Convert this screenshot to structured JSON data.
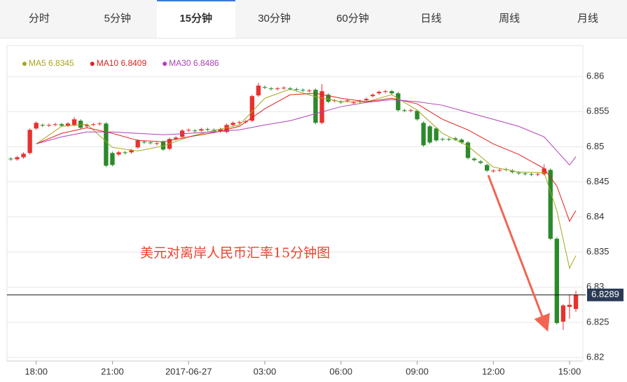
{
  "tabs": [
    "分时",
    "5分钟",
    "15分钟",
    "30分钟",
    "60分钟",
    "日线",
    "周线",
    "月线"
  ],
  "active_tab": 2,
  "chart_data": {
    "type": "candlestick",
    "annotation": "美元对离岸人民币汇率15分钟图",
    "last_price": 6.8289,
    "up_color": "#e8312f",
    "down_color": "#2b8a2b",
    "ylim": [
      6.8195,
      6.8644
    ],
    "yticks": [
      6.86,
      6.855,
      6.85,
      6.845,
      6.84,
      6.835,
      6.83,
      6.825,
      6.82
    ],
    "xlim": [
      -0.6,
      90.1
    ],
    "xticks": [
      {
        "value": 4,
        "label": "18:00"
      },
      {
        "value": 16,
        "label": "21:00"
      },
      {
        "value": 28,
        "label": "2017-06-27"
      },
      {
        "value": 40,
        "label": "03:00"
      },
      {
        "value": 52,
        "label": "06:00"
      },
      {
        "value": 64,
        "label": "09:00"
      },
      {
        "value": 76,
        "label": "12:00"
      },
      {
        "value": 88,
        "label": "15:00"
      }
    ],
    "open": [
      6.8483,
      6.8482,
      6.8485,
      6.8491,
      6.8526,
      6.8531,
      6.853,
      6.8531,
      6.8532,
      6.853,
      6.8531,
      6.8537,
      6.8529,
      6.8531,
      6.8532,
      6.8533,
      6.8491,
      6.8489,
      6.8492,
      6.8492,
      6.8499,
      6.8507,
      6.8506,
      6.8504,
      6.8507,
      6.8497,
      6.8511,
      6.8514,
      6.8523,
      6.8523,
      6.8523,
      6.8525,
      6.8524,
      6.8522,
      6.8521,
      6.8531,
      6.8534,
      6.8535,
      6.8537,
      6.8573,
      6.8585,
      6.8583,
      6.8582,
      6.8583,
      6.8583,
      6.8582,
      6.8581,
      6.8579,
      6.8581,
      6.8534,
      6.8574,
      6.8565,
      6.8564,
      6.8565,
      6.8562,
      6.8564,
      6.8566,
      6.8572,
      6.8576,
      6.8578,
      6.8579,
      6.8576,
      6.8552,
      6.8551,
      6.8551,
      6.8534,
      6.8529,
      6.8526,
      6.8511,
      6.8511,
      6.8512,
      6.851,
      6.8506,
      6.8483,
      6.8479,
      6.8474,
      6.8465,
      6.8466,
      6.8468,
      6.8466,
      6.8463,
      6.8462,
      6.8461,
      6.846,
      6.8461,
      6.8467,
      6.8369,
      6.8251,
      6.8272,
      6.8269
    ],
    "high": [
      6.8485,
      6.8487,
      6.8492,
      6.8526,
      6.8536,
      6.8533,
      6.8533,
      6.8534,
      6.8534,
      6.8535,
      6.8542,
      6.8539,
      6.8533,
      6.8534,
      6.8535,
      6.8535,
      6.8493,
      6.8494,
      6.8494,
      6.8497,
      6.8511,
      6.8509,
      6.8508,
      6.8507,
      6.8509,
      6.8513,
      6.8515,
      6.8525,
      6.8526,
      6.8525,
      6.8527,
      6.8527,
      6.8526,
      6.8527,
      6.8533,
      6.8536,
      6.8537,
      6.8538,
      6.8574,
      6.8591,
      6.8587,
      6.8585,
      6.8585,
      6.8586,
      6.8585,
      6.8584,
      6.8583,
      6.8582,
      6.8583,
      6.8589,
      6.8576,
      6.8568,
      6.8566,
      6.8568,
      6.8565,
      6.8567,
      6.857,
      6.8576,
      6.858,
      6.8581,
      6.8581,
      6.8578,
      6.8554,
      6.8554,
      6.8553,
      6.8536,
      6.8531,
      6.8528,
      6.8513,
      6.8513,
      6.8514,
      6.8512,
      6.8508,
      6.8485,
      6.8481,
      6.8476,
      6.8468,
      6.8469,
      6.847,
      6.8468,
      6.8465,
      6.8464,
      6.8463,
      6.8463,
      6.8475,
      6.8469,
      6.8371,
      6.8276,
      6.829,
      6.8295
    ],
    "low": [
      6.848,
      6.848,
      6.8483,
      6.8489,
      6.8524,
      6.8528,
      6.8528,
      6.8529,
      6.8528,
      6.8528,
      6.8529,
      6.8525,
      6.8527,
      6.8529,
      6.853,
      6.8471,
      6.8472,
      6.8487,
      6.8489,
      6.849,
      6.8497,
      6.8504,
      6.8503,
      6.8502,
      6.8494,
      6.8495,
      6.8509,
      6.8512,
      6.8521,
      6.852,
      6.8521,
      6.8522,
      6.852,
      6.852,
      6.8519,
      6.8529,
      6.8532,
      6.8533,
      6.8535,
      6.8571,
      6.8582,
      6.858,
      6.858,
      6.8581,
      6.858,
      6.8579,
      6.8578,
      6.8577,
      6.8532,
      6.8532,
      6.8562,
      6.8563,
      6.8561,
      6.8563,
      6.856,
      6.8562,
      6.8564,
      6.857,
      6.8574,
      6.8576,
      6.8574,
      6.855,
      6.8549,
      6.8549,
      6.8537,
      6.85,
      6.8504,
      6.8507,
      6.8508,
      6.8508,
      6.8508,
      6.8504,
      6.8482,
      6.8479,
      6.8475,
      6.8464,
      6.8463,
      6.8464,
      6.8465,
      6.8462,
      6.846,
      6.8459,
      6.8458,
      6.8458,
      6.8459,
      6.8367,
      6.8247,
      6.8239,
      6.8255,
      6.8265
    ],
    "close": [
      6.8482,
      6.8485,
      6.849,
      6.8524,
      6.8534,
      6.853,
      6.8531,
      6.8532,
      6.853,
      6.8533,
      6.8539,
      6.8527,
      6.8531,
      6.8532,
      6.8533,
      6.8473,
      6.8474,
      6.8492,
      6.8491,
      6.8495,
      6.8509,
      6.8506,
      6.8505,
      6.8505,
      6.8496,
      6.8511,
      6.8513,
      6.8523,
      6.8524,
      6.8522,
      6.8525,
      6.8524,
      6.8522,
      6.8525,
      6.8531,
      6.8534,
      6.8535,
      6.8536,
      6.8572,
      6.8587,
      6.8584,
      6.8582,
      6.8583,
      6.8584,
      6.8582,
      6.8581,
      6.858,
      6.858,
      6.8534,
      6.8579,
      6.8564,
      6.8566,
      6.8563,
      6.8566,
      6.8563,
      6.8565,
      6.8568,
      6.8574,
      6.8578,
      6.8579,
      6.8576,
      6.8552,
      6.8551,
      6.8552,
      6.8539,
      6.8502,
      6.8506,
      6.8509,
      6.851,
      6.851,
      6.851,
      6.8506,
      6.8484,
      6.8481,
      6.8477,
      6.8466,
      6.8466,
      6.8467,
      6.8467,
      6.8464,
      6.8462,
      6.8461,
      6.846,
      6.8461,
      6.8469,
      6.8369,
      6.8249,
      6.8274,
      6.8275,
      6.8289
    ],
    "series": [
      {
        "name": "MA5",
        "color": "#a6a61c",
        "x": [
          4,
          8,
          12,
          16,
          20,
          24,
          28,
          32,
          36,
          40,
          44,
          48,
          52,
          56,
          60,
          64,
          68,
          72,
          76,
          80,
          84,
          86,
          88,
          89
        ],
        "values": [
          6.8504,
          6.8529,
          6.8532,
          6.8499,
          6.8494,
          6.8501,
          6.8514,
          6.8523,
          6.8531,
          6.8569,
          6.8582,
          6.8571,
          6.8564,
          6.8564,
          6.8574,
          6.8552,
          6.8519,
          6.8501,
          6.8471,
          6.8464,
          6.8463,
          6.8409,
          6.8327,
          6.8345
        ]
      },
      {
        "name": "MA10",
        "color": "#e0201c",
        "x": [
          4,
          8,
          12,
          16,
          20,
          24,
          28,
          32,
          36,
          40,
          44,
          48,
          52,
          56,
          60,
          64,
          68,
          72,
          76,
          80,
          84,
          86,
          88,
          89
        ],
        "values": [
          6.8504,
          6.8519,
          6.8527,
          6.8519,
          6.8509,
          6.8507,
          6.8514,
          6.852,
          6.8529,
          6.8554,
          6.8574,
          6.8576,
          6.8569,
          6.8564,
          6.8569,
          6.8561,
          6.8539,
          6.8524,
          6.8504,
          6.8489,
          6.8469,
          6.8444,
          6.8394,
          6.8409
        ]
      },
      {
        "name": "MA30",
        "color": "#b040b8",
        "x": [
          4,
          8,
          12,
          16,
          20,
          24,
          28,
          32,
          36,
          40,
          44,
          48,
          52,
          56,
          60,
          64,
          68,
          72,
          76,
          80,
          84,
          86,
          88,
          89
        ],
        "values": [
          6.8504,
          6.8514,
          6.8521,
          6.8521,
          6.8519,
          6.8517,
          6.8519,
          6.8521,
          6.8524,
          6.8531,
          6.8537,
          6.8547,
          6.8557,
          6.8563,
          6.8567,
          6.8564,
          6.8559,
          6.8549,
          6.8539,
          6.8529,
          6.8514,
          6.8494,
          6.8474,
          6.8486
        ]
      }
    ]
  }
}
